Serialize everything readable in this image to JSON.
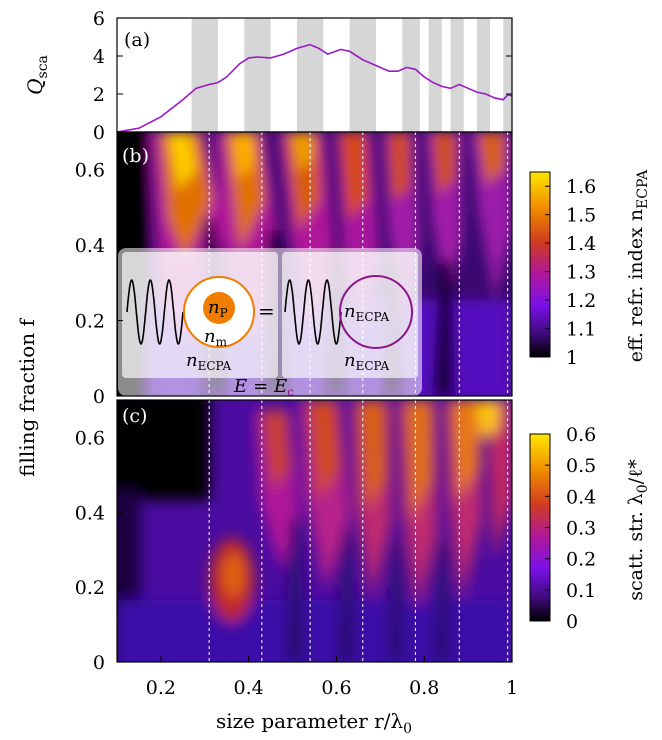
{
  "chart_data": [
    {
      "type": "line",
      "panel_label": "(a)",
      "ylabel": "Q",
      "ylabel_sub": "sca",
      "ylim": [
        0,
        6
      ],
      "xlim": [
        0.1,
        1.0
      ],
      "y_ticks": [
        "0",
        "2",
        "4",
        "6"
      ],
      "line_color": "#9b19c8",
      "series": [
        {
          "x": [
            0.1,
            0.15,
            0.2,
            0.25,
            0.28,
            0.31,
            0.33,
            0.35,
            0.38,
            0.4,
            0.42,
            0.45,
            0.48,
            0.51,
            0.54,
            0.56,
            0.58,
            0.61,
            0.63,
            0.66,
            0.69,
            0.72,
            0.74,
            0.76,
            0.78,
            0.8,
            0.82,
            0.84,
            0.86,
            0.88,
            0.9,
            0.92,
            0.94,
            0.96,
            0.98,
            0.99,
            1.0
          ],
          "y": [
            0.0,
            0.2,
            0.8,
            1.7,
            2.3,
            2.5,
            2.6,
            2.9,
            3.6,
            3.9,
            3.95,
            3.9,
            4.1,
            4.4,
            4.6,
            4.4,
            4.1,
            4.35,
            4.25,
            3.8,
            3.5,
            3.2,
            3.2,
            3.4,
            3.3,
            2.9,
            2.6,
            2.4,
            2.3,
            2.5,
            2.3,
            2.1,
            2.0,
            1.8,
            1.7,
            1.95,
            1.9
          ]
        }
      ],
      "shaded_bands": [
        [
          0.27,
          0.33
        ],
        [
          0.39,
          0.45
        ],
        [
          0.51,
          0.57
        ],
        [
          0.63,
          0.69
        ],
        [
          0.75,
          0.79
        ],
        [
          0.81,
          0.84
        ],
        [
          0.86,
          0.89
        ],
        [
          0.92,
          0.95
        ],
        [
          0.98,
          1.0
        ]
      ]
    },
    {
      "type": "heatmap",
      "panel_label": "(b)",
      "ylim": [
        0,
        0.7
      ],
      "xlim": [
        0.1,
        1.0
      ],
      "y_ticks": [
        "0",
        "0.2",
        "0.4",
        "0.6"
      ],
      "colorbar": {
        "label": "eff. refr. index n",
        "label_sub": "ECPA",
        "range": [
          1.0,
          1.65
        ],
        "ticks": [
          "1",
          "1.1",
          "1.2",
          "1.3",
          "1.4",
          "1.5",
          "1.6"
        ]
      },
      "resonance_lines": [
        0.31,
        0.43,
        0.54,
        0.66,
        0.78,
        0.88,
        0.99
      ],
      "inset": {
        "n_p": "n",
        "n_p_sub": "P",
        "n_m": "n",
        "n_m_sub": "m",
        "n_ecpa_left": "n",
        "n_ecpa_left_sub": "ECPA",
        "equals": "=",
        "n_ecpa_sphere": "n",
        "n_ecpa_sphere_sub": "ECPA",
        "n_ecpa_right": "n",
        "n_ecpa_right_sub": "ECPA",
        "energy_left": "E",
        "energy_mid": "= E",
        "energy_right_sub": "c"
      }
    },
    {
      "type": "heatmap",
      "panel_label": "(c)",
      "ylim": [
        0,
        0.7
      ],
      "xlim": [
        0.1,
        1.0
      ],
      "y_ticks": [
        "0",
        "0.2",
        "0.4",
        "0.6"
      ],
      "x_ticks": [
        "0.2",
        "0.4",
        "0.6",
        "0.8",
        "1"
      ],
      "xlabel": "size parameter r/λ",
      "xlabel_sub": "0",
      "colorbar": {
        "label": "scatt. str. λ",
        "label_sub": "0",
        "label_tail": "/ℓ*",
        "range": [
          0,
          0.6
        ],
        "ticks": [
          "0",
          "0.1",
          "0.2",
          "0.3",
          "0.4",
          "0.5",
          "0.6"
        ]
      },
      "resonance_lines": [
        0.31,
        0.43,
        0.54,
        0.66,
        0.78,
        0.88,
        0.99
      ]
    }
  ],
  "shared_ylabel": "filling fraction f",
  "colors": {
    "grey_band": "#d6d6d6",
    "curve": "#9b19c8",
    "particle_orange": "#f07d00",
    "ring_orange": "#f07d00",
    "ring_purple": "#8c1487"
  }
}
